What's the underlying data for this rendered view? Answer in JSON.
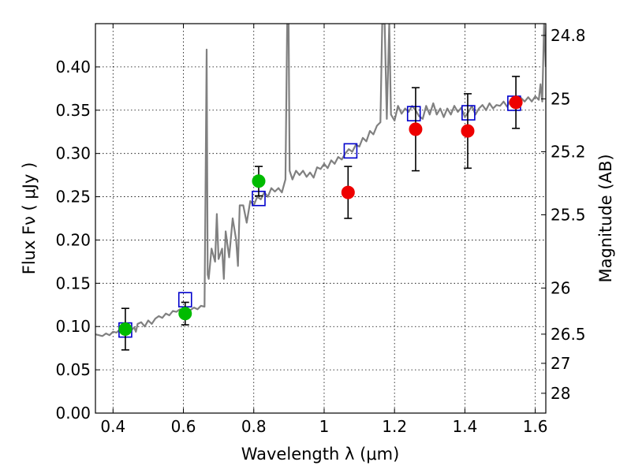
{
  "chart_data": {
    "type": "scatter",
    "title": "",
    "xlabel": "Wavelength  λ (μm)",
    "ylabel": "Flux  Fν  ( μJy )",
    "ylabel_right": "Magnitude (AB)",
    "xlim": [
      0.35,
      1.63
    ],
    "ylim": [
      0,
      0.45
    ],
    "grid": true,
    "x_ticks": [
      0.4,
      0.6,
      0.8,
      1.0,
      1.2,
      1.4,
      1.6
    ],
    "x_tick_labels": [
      "0.4",
      "0.6",
      "0.8",
      "1",
      "1.2",
      "1.4",
      "1.6"
    ],
    "y_ticks": [
      0.0,
      0.05,
      0.1,
      0.15,
      0.2,
      0.25,
      0.3,
      0.35,
      0.4
    ],
    "y_tick_labels": [
      "0.00",
      "0.05",
      "0.10",
      "0.15",
      "0.20",
      "0.25",
      "0.30",
      "0.35",
      "0.40"
    ],
    "right_ticks": [
      {
        "label": "24.8",
        "flux": 0.4364
      },
      {
        "label": "25",
        "flux": 0.3631
      },
      {
        "label": "25.2",
        "flux": 0.302
      },
      {
        "label": "25.5",
        "flux": 0.2291
      },
      {
        "label": "26",
        "flux": 0.1445
      },
      {
        "label": "26.5",
        "flux": 0.0912
      },
      {
        "label": "27",
        "flux": 0.0575
      },
      {
        "label": "28",
        "flux": 0.0229
      }
    ],
    "series": [
      {
        "kind": "model_spectrum",
        "color": "#808080",
        "points": [
          [
            0.35,
            0.091
          ],
          [
            0.36,
            0.09
          ],
          [
            0.37,
            0.089
          ],
          [
            0.38,
            0.092
          ],
          [
            0.39,
            0.09
          ],
          [
            0.4,
            0.094
          ],
          [
            0.41,
            0.093
          ],
          [
            0.42,
            0.097
          ],
          [
            0.43,
            0.096
          ],
          [
            0.44,
            0.098
          ],
          [
            0.45,
            0.095
          ],
          [
            0.46,
            0.099
          ],
          [
            0.465,
            0.094
          ],
          [
            0.47,
            0.103
          ],
          [
            0.48,
            0.105
          ],
          [
            0.49,
            0.1
          ],
          [
            0.5,
            0.107
          ],
          [
            0.51,
            0.103
          ],
          [
            0.52,
            0.109
          ],
          [
            0.53,
            0.112
          ],
          [
            0.54,
            0.11
          ],
          [
            0.55,
            0.115
          ],
          [
            0.56,
            0.113
          ],
          [
            0.57,
            0.118
          ],
          [
            0.58,
            0.117
          ],
          [
            0.59,
            0.12
          ],
          [
            0.6,
            0.118
          ],
          [
            0.61,
            0.121
          ],
          [
            0.62,
            0.119
          ],
          [
            0.63,
            0.122
          ],
          [
            0.64,
            0.12
          ],
          [
            0.65,
            0.124
          ],
          [
            0.66,
            0.123
          ],
          [
            0.663,
            0.26
          ],
          [
            0.666,
            0.42
          ],
          [
            0.669,
            0.16
          ],
          [
            0.672,
            0.155
          ],
          [
            0.68,
            0.19
          ],
          [
            0.69,
            0.175
          ],
          [
            0.695,
            0.23
          ],
          [
            0.7,
            0.178
          ],
          [
            0.71,
            0.19
          ],
          [
            0.715,
            0.155
          ],
          [
            0.72,
            0.21
          ],
          [
            0.73,
            0.18
          ],
          [
            0.74,
            0.225
          ],
          [
            0.75,
            0.2
          ],
          [
            0.755,
            0.17
          ],
          [
            0.76,
            0.24
          ],
          [
            0.77,
            0.24
          ],
          [
            0.78,
            0.22
          ],
          [
            0.79,
            0.245
          ],
          [
            0.8,
            0.24
          ],
          [
            0.81,
            0.25
          ],
          [
            0.82,
            0.247
          ],
          [
            0.83,
            0.255
          ],
          [
            0.84,
            0.25
          ],
          [
            0.85,
            0.26
          ],
          [
            0.86,
            0.256
          ],
          [
            0.87,
            0.26
          ],
          [
            0.88,
            0.255
          ],
          [
            0.89,
            0.27
          ],
          [
            0.895,
            0.45
          ],
          [
            0.899,
            0.45
          ],
          [
            0.902,
            0.28
          ],
          [
            0.91,
            0.27
          ],
          [
            0.92,
            0.28
          ],
          [
            0.93,
            0.275
          ],
          [
            0.94,
            0.28
          ],
          [
            0.95,
            0.273
          ],
          [
            0.96,
            0.278
          ],
          [
            0.97,
            0.272
          ],
          [
            0.98,
            0.284
          ],
          [
            0.99,
            0.282
          ],
          [
            1.0,
            0.288
          ],
          [
            1.01,
            0.283
          ],
          [
            1.02,
            0.292
          ],
          [
            1.03,
            0.288
          ],
          [
            1.04,
            0.296
          ],
          [
            1.05,
            0.293
          ],
          [
            1.06,
            0.3
          ],
          [
            1.07,
            0.305
          ],
          [
            1.08,
            0.302
          ],
          [
            1.09,
            0.31
          ],
          [
            1.1,
            0.308
          ],
          [
            1.11,
            0.318
          ],
          [
            1.12,
            0.314
          ],
          [
            1.13,
            0.326
          ],
          [
            1.14,
            0.322
          ],
          [
            1.15,
            0.332
          ],
          [
            1.16,
            0.336
          ],
          [
            1.165,
            0.45
          ],
          [
            1.172,
            0.45
          ],
          [
            1.178,
            0.34
          ],
          [
            1.185,
            0.45
          ],
          [
            1.19,
            0.345
          ],
          [
            1.2,
            0.338
          ],
          [
            1.21,
            0.355
          ],
          [
            1.22,
            0.346
          ],
          [
            1.23,
            0.352
          ],
          [
            1.24,
            0.348
          ],
          [
            1.25,
            0.355
          ],
          [
            1.26,
            0.35
          ],
          [
            1.27,
            0.343
          ],
          [
            1.28,
            0.34
          ],
          [
            1.29,
            0.355
          ],
          [
            1.3,
            0.345
          ],
          [
            1.31,
            0.358
          ],
          [
            1.32,
            0.345
          ],
          [
            1.33,
            0.352
          ],
          [
            1.34,
            0.342
          ],
          [
            1.35,
            0.352
          ],
          [
            1.36,
            0.345
          ],
          [
            1.37,
            0.355
          ],
          [
            1.38,
            0.348
          ],
          [
            1.39,
            0.353
          ],
          [
            1.4,
            0.342
          ],
          [
            1.41,
            0.348
          ],
          [
            1.42,
            0.355
          ],
          [
            1.43,
            0.345
          ],
          [
            1.44,
            0.352
          ],
          [
            1.45,
            0.356
          ],
          [
            1.46,
            0.35
          ],
          [
            1.47,
            0.358
          ],
          [
            1.48,
            0.352
          ],
          [
            1.49,
            0.356
          ],
          [
            1.5,
            0.355
          ],
          [
            1.51,
            0.36
          ],
          [
            1.52,
            0.354
          ],
          [
            1.53,
            0.362
          ],
          [
            1.54,
            0.358
          ],
          [
            1.55,
            0.36
          ],
          [
            1.56,
            0.364
          ],
          [
            1.57,
            0.36
          ],
          [
            1.58,
            0.365
          ],
          [
            1.59,
            0.36
          ],
          [
            1.6,
            0.366
          ],
          [
            1.61,
            0.362
          ],
          [
            1.615,
            0.38
          ],
          [
            1.62,
            0.36
          ],
          [
            1.625,
            0.45
          ],
          [
            1.63,
            0.4
          ]
        ]
      },
      {
        "kind": "model_bandpass",
        "marker": "open-square",
        "color": "#0000cc",
        "points": [
          [
            0.435,
            0.096
          ],
          [
            0.605,
            0.131
          ],
          [
            0.814,
            0.248
          ],
          [
            1.075,
            0.303
          ],
          [
            1.255,
            0.346
          ],
          [
            1.41,
            0.347
          ],
          [
            1.54,
            0.358
          ]
        ]
      },
      {
        "kind": "observed",
        "marker": "filled-circle",
        "color": "#00bb00",
        "points": [
          {
            "x": 0.435,
            "y": 0.097,
            "yerr": 0.024
          },
          {
            "x": 0.605,
            "y": 0.115,
            "yerr": 0.013
          },
          {
            "x": 0.814,
            "y": 0.268,
            "yerr": 0.017
          }
        ]
      },
      {
        "kind": "observed",
        "marker": "filled-circle",
        "color": "#ee0000",
        "points": [
          {
            "x": 1.068,
            "y": 0.255,
            "yerr": 0.03
          },
          {
            "x": 1.26,
            "y": 0.328,
            "yerr": 0.048
          },
          {
            "x": 1.408,
            "y": 0.326,
            "yerr": 0.043
          },
          {
            "x": 1.545,
            "y": 0.359,
            "yerr": 0.03
          }
        ]
      }
    ]
  }
}
